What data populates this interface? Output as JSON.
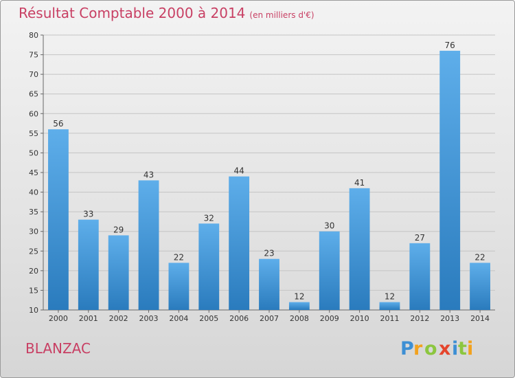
{
  "title": "Résultat Comptable 2000 à 2014",
  "subtitle": "(en milliers d'€)",
  "place_name": "BLANZAC",
  "brand": "Proxiti",
  "colors": {
    "title": "#c83f63",
    "bar_top": "#5eaeea",
    "bar_bottom": "#2a7bbd",
    "grid": "#c4c4c4"
  },
  "chart_data": {
    "type": "bar",
    "title": "Résultat Comptable 2000 à 2014",
    "subtitle": "(en milliers d'€)",
    "categories": [
      "2000",
      "2001",
      "2002",
      "2003",
      "2004",
      "2005",
      "2006",
      "2007",
      "2008",
      "2009",
      "2010",
      "2011",
      "2012",
      "2013",
      "2014"
    ],
    "values": [
      56,
      33,
      29,
      43,
      22,
      32,
      44,
      23,
      12,
      30,
      41,
      12,
      27,
      76,
      22
    ],
    "ylim": [
      10,
      80
    ],
    "yticks": [
      10,
      15,
      20,
      25,
      30,
      35,
      40,
      45,
      50,
      55,
      60,
      65,
      70,
      75,
      80
    ],
    "grid": true,
    "data_labels": true
  }
}
